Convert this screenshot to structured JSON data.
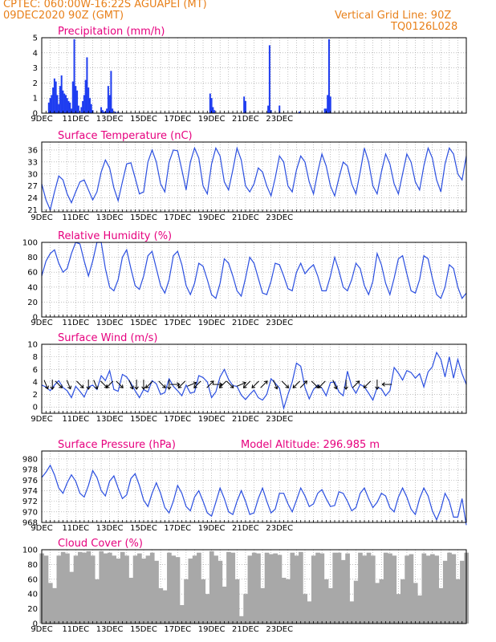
{
  "header": {
    "line1_left": "CPTEC:   060:00W-16:22S   AGUAPEI (MT)",
    "line2_left": "09DEC2020 90Z (GMT)",
    "line2_right": "Vertical Grid Line: 90Z",
    "line3_right": "TQ0126L028"
  },
  "colors": {
    "header": "#e8801a",
    "title": "#e6007e",
    "series": "#2b4fe0",
    "bars": "#1f3df0",
    "cloud": "#a8a8a8",
    "wind": "#000000"
  },
  "chart_data": [
    {
      "type": "bar",
      "title": "Precipitation (mm/h)",
      "x_ticks": [
        "9DEC",
        "11DEC",
        "13DEC",
        "15DEC",
        "17DEC",
        "19DEC",
        "21DEC",
        "23DEC"
      ],
      "y_ticks": [
        "0",
        "1",
        "2",
        "3",
        "4",
        "5"
      ],
      "ylim": [
        0,
        5
      ],
      "grid": true,
      "x_unit": "hours since 09DEC 00Z",
      "x": [
        10,
        12,
        14,
        16,
        18,
        20,
        22,
        24,
        26,
        28,
        30,
        32,
        34,
        36,
        38,
        40,
        42,
        44,
        46,
        48,
        50,
        52,
        56,
        58,
        60,
        62,
        64,
        66,
        68,
        70,
        72,
        84,
        86,
        88,
        90,
        92,
        94,
        96,
        98,
        100,
        104,
        108,
        238,
        240,
        242,
        244,
        286,
        288,
        320,
        322,
        324,
        336,
        364,
        400,
        402,
        404,
        406,
        408
      ],
      "values": [
        0.7,
        1.0,
        1.2,
        1.7,
        2.3,
        2.1,
        1.2,
        0.6,
        1.8,
        2.5,
        1.5,
        1.3,
        1.2,
        1.0,
        0.8,
        0.7,
        0.3,
        2.1,
        4.9,
        1.8,
        1.5,
        0.5,
        0.4,
        0.8,
        1.2,
        2.2,
        3.7,
        1.7,
        1.0,
        0.6,
        0.2,
        0.4,
        0.2,
        0.1,
        0.1,
        0.3,
        1.8,
        1.2,
        2.8,
        0.3,
        0.1,
        0.1,
        1.3,
        1.0,
        0.4,
        0.2,
        1.1,
        0.8,
        0.5,
        4.5,
        0.2,
        0.5,
        0.1,
        0.3,
        0.3,
        1.2,
        4.9,
        1.1
      ]
    },
    {
      "type": "line",
      "title": "Surface Temperature (nC)",
      "x_ticks": [
        "9DEC",
        "11DEC",
        "13DEC",
        "15DEC",
        "17DEC",
        "19DEC",
        "21DEC",
        "23DEC"
      ],
      "y_ticks": [
        "21",
        "24",
        "27",
        "30",
        "33",
        "36"
      ],
      "ylim": [
        20.5,
        38
      ],
      "grid": true,
      "x_unit": "hours since 09DEC 00Z",
      "x": [
        0,
        6,
        12,
        18,
        24,
        30,
        36,
        42,
        48,
        54,
        60,
        66,
        72,
        78,
        84,
        90,
        96,
        102,
        108,
        114,
        120,
        126,
        132,
        138,
        144,
        150,
        156,
        162,
        168,
        174,
        180,
        186,
        192,
        198,
        204,
        210,
        216,
        222,
        228,
        234,
        240,
        246,
        252,
        258,
        264,
        270,
        276,
        282,
        288,
        294,
        300,
        306,
        312,
        318,
        324,
        330,
        336,
        342,
        348,
        354,
        360,
        366,
        372,
        378,
        384,
        390,
        396,
        402,
        408,
        414,
        420,
        426,
        432,
        438,
        444,
        450,
        456,
        462,
        468,
        474,
        480,
        486,
        492,
        498,
        504,
        510,
        516,
        522,
        528,
        534,
        540,
        546,
        552,
        558,
        564,
        570,
        576,
        582,
        588,
        594,
        600
      ],
      "values": [
        27.5,
        23.5,
        21,
        25.5,
        29.5,
        28.5,
        25,
        22.8,
        25.5,
        28,
        28.5,
        26,
        23.5,
        25.5,
        30.5,
        33.5,
        31.5,
        26.5,
        23.3,
        28,
        32.5,
        32.8,
        29,
        25,
        25.5,
        33,
        36,
        33,
        27.5,
        25.5,
        33,
        36,
        35.8,
        31,
        26,
        33,
        36.5,
        34,
        27,
        25,
        32.5,
        36.5,
        34.5,
        28,
        26,
        31,
        36.5,
        33.5,
        27,
        25.5,
        27.5,
        31.5,
        30.5,
        27,
        24.5,
        29,
        34.5,
        33,
        27,
        25.5,
        31,
        34.5,
        33,
        28,
        25,
        30.5,
        35,
        32,
        27,
        24.5,
        29,
        33,
        32,
        27.5,
        25,
        30.5,
        36.5,
        33,
        27,
        25,
        30.5,
        35,
        32.5,
        27.5,
        25,
        30,
        35,
        33,
        28,
        26,
        32,
        36.5,
        34,
        28.5,
        25.5,
        32.5,
        36.5,
        35,
        30,
        28.5,
        34.5
      ]
    },
    {
      "type": "line",
      "title": "Relative Humidity (%)",
      "x_ticks": [
        "9DEC",
        "11DEC",
        "13DEC",
        "15DEC",
        "17DEC",
        "19DEC",
        "21DEC",
        "23DEC"
      ],
      "y_ticks": [
        "0",
        "20",
        "40",
        "60",
        "80",
        "100"
      ],
      "ylim": [
        0,
        100
      ],
      "grid": true,
      "x_unit": "hours since 09DEC 00Z",
      "x": [
        0,
        6,
        12,
        18,
        24,
        30,
        36,
        42,
        48,
        54,
        60,
        66,
        72,
        78,
        84,
        90,
        96,
        102,
        108,
        114,
        120,
        126,
        132,
        138,
        144,
        150,
        156,
        162,
        168,
        174,
        180,
        186,
        192,
        198,
        204,
        210,
        216,
        222,
        228,
        234,
        240,
        246,
        252,
        258,
        264,
        270,
        276,
        282,
        288,
        294,
        300,
        306,
        312,
        318,
        324,
        330,
        336,
        342,
        348,
        354,
        360,
        366,
        372,
        378,
        384,
        390,
        396,
        402,
        408,
        414,
        420,
        426,
        432,
        438,
        444,
        450,
        456,
        462,
        468,
        474,
        480,
        486,
        492,
        498,
        504,
        510,
        516,
        522,
        528,
        534,
        540,
        546,
        552,
        558,
        564,
        570,
        576,
        582,
        588,
        594,
        600
      ],
      "values": [
        55,
        75,
        85,
        90,
        72,
        60,
        65,
        85,
        100,
        98,
        75,
        55,
        75,
        100,
        100,
        65,
        40,
        35,
        50,
        80,
        90,
        65,
        42,
        37,
        55,
        82,
        88,
        65,
        42,
        32,
        50,
        82,
        88,
        70,
        42,
        30,
        45,
        72,
        68,
        50,
        30,
        25,
        45,
        78,
        72,
        55,
        35,
        28,
        52,
        80,
        72,
        52,
        32,
        30,
        48,
        72,
        70,
        55,
        38,
        35,
        60,
        72,
        58,
        65,
        70,
        55,
        35,
        35,
        55,
        80,
        62,
        40,
        35,
        50,
        72,
        65,
        42,
        30,
        48,
        85,
        70,
        45,
        30,
        52,
        78,
        82,
        58,
        35,
        32,
        50,
        82,
        78,
        52,
        30,
        25,
        40,
        70,
        65,
        40,
        25,
        32
      ]
    },
    {
      "type": "line",
      "title": "Surface Wind (m/s)",
      "x_ticks": [
        "9DEC",
        "11DEC",
        "13DEC",
        "15DEC",
        "17DEC",
        "19DEC",
        "21DEC",
        "23DEC"
      ],
      "y_ticks": [
        "0",
        "2",
        "4",
        "6",
        "8",
        "10"
      ],
      "ylim": [
        -1,
        10
      ],
      "grid": true,
      "x_unit": "hours since 09DEC 00Z",
      "x": [
        0,
        6,
        12,
        18,
        24,
        30,
        36,
        42,
        48,
        54,
        60,
        66,
        72,
        78,
        84,
        90,
        96,
        102,
        108,
        114,
        120,
        126,
        132,
        138,
        144,
        150,
        156,
        162,
        168,
        174,
        180,
        186,
        192,
        198,
        204,
        210,
        216,
        222,
        228,
        234,
        240,
        246,
        252,
        258,
        264,
        270,
        276,
        282,
        288,
        294,
        300,
        306,
        312,
        318,
        324,
        330,
        336,
        342,
        348,
        354,
        360,
        366,
        372,
        378,
        384,
        390,
        396,
        402,
        408,
        414,
        420,
        426,
        432,
        438,
        444,
        450,
        456,
        462,
        468,
        474,
        480,
        486,
        492,
        498,
        504,
        510,
        516,
        522,
        528,
        534,
        540,
        546,
        552,
        558,
        564,
        570,
        576,
        582,
        588,
        594,
        600
      ],
      "values": [
        3.5,
        3.2,
        2.6,
        3.5,
        4.2,
        3.1,
        2.6,
        1.5,
        3.3,
        2.5,
        1.6,
        3.2,
        3.5,
        2.8,
        5,
        4.2,
        5.8,
        2.8,
        2.5,
        5.2,
        4.8,
        3.8,
        2.6,
        1.5,
        2.8,
        2.4,
        4.2,
        3.7,
        2,
        2.3,
        4.5,
        3.3,
        2.6,
        1.8,
        3.5,
        2.2,
        2.4,
        5,
        4.7,
        4,
        1.5,
        2.4,
        4.8,
        6,
        4.4,
        3.4,
        3.3,
        1.9,
        1.2,
        2,
        2.7,
        1.5,
        1.1,
        2,
        4.5,
        3.8,
        3,
        -0.2,
        2,
        4,
        7,
        6.5,
        3.1,
        1.3,
        2.8,
        3.5,
        3,
        1.8,
        3.9,
        4,
        2.4,
        1.8,
        5.7,
        3.3,
        2.2,
        3.6,
        3.2,
        2.2,
        1.1,
        3.1,
        2.9,
        1.8,
        2.6,
        6.3,
        5.4,
        4.3,
        5.8,
        5.5,
        4.6,
        5.3,
        3.2,
        5.6,
        6.4,
        8.7,
        7.6,
        4.8,
        8,
        4.6,
        7.6,
        5.3,
        3.6
      ],
      "arrow_x": [
        6,
        15,
        24,
        38,
        54,
        66,
        76,
        88,
        96,
        110,
        126,
        134,
        144,
        152,
        170,
        180,
        188,
        198,
        212,
        220,
        238,
        248,
        256,
        266,
        282,
        290,
        302,
        314,
        330,
        344,
        360,
        370,
        386,
        396,
        414,
        430,
        444,
        460,
        474,
        488
      ],
      "arrow_dir": [
        "sse",
        "s",
        "se",
        "sse",
        "se",
        "s",
        "sse",
        "se",
        "sw",
        "se",
        "sse",
        "s",
        "s",
        "sw",
        "se",
        "s",
        "e",
        "sw",
        "ene",
        "sw",
        "ne",
        "e",
        "sw",
        "se",
        "ene",
        "sw",
        "sw",
        "ne",
        "sse",
        "se",
        "sw",
        "ne",
        "se",
        "sw",
        "sse",
        "s",
        "ne",
        "sw",
        "s",
        "w"
      ]
    },
    {
      "type": "line",
      "title": "Surface Pressure (hPa)",
      "annotation": "Model Altitude: 296.985 m",
      "x_ticks": [
        "9DEC",
        "11DEC",
        "13DEC",
        "15DEC",
        "17DEC",
        "19DEC",
        "21DEC",
        "23DEC"
      ],
      "y_ticks": [
        "968",
        "970",
        "972",
        "974",
        "976",
        "978",
        "980"
      ],
      "ylim": [
        968,
        981.5
      ],
      "grid": true,
      "x_unit": "hours since 09DEC 00Z",
      "x": [
        0,
        6,
        12,
        18,
        24,
        30,
        36,
        42,
        48,
        54,
        60,
        66,
        72,
        78,
        84,
        90,
        96,
        102,
        108,
        114,
        120,
        126,
        132,
        138,
        144,
        150,
        156,
        162,
        168,
        174,
        180,
        186,
        192,
        198,
        204,
        210,
        216,
        222,
        228,
        234,
        240,
        246,
        252,
        258,
        264,
        270,
        276,
        282,
        288,
        294,
        300,
        306,
        312,
        318,
        324,
        330,
        336,
        342,
        348,
        354,
        360,
        366,
        372,
        378,
        384,
        390,
        396,
        402,
        408,
        414,
        420,
        426,
        432,
        438,
        444,
        450,
        456,
        462,
        468,
        474,
        480,
        486,
        492,
        498,
        504,
        510,
        516,
        522,
        528,
        534,
        540,
        546,
        552,
        558,
        564,
        570,
        576,
        582,
        588,
        594,
        600
      ],
      "values": [
        976.5,
        977.5,
        978.8,
        977,
        974.5,
        973.5,
        975.5,
        977,
        975.8,
        973.5,
        972.8,
        975,
        977.8,
        976.5,
        974,
        973,
        975.8,
        976.8,
        974.5,
        972.5,
        973.2,
        976.3,
        977.2,
        975,
        972.2,
        971,
        973.5,
        975.5,
        973.5,
        970.8,
        969.8,
        972,
        975,
        973.5,
        971,
        970.2,
        972.8,
        974,
        972,
        969.8,
        969.2,
        971.8,
        974.5,
        972.5,
        970,
        969.5,
        972,
        974,
        972,
        969.5,
        969.8,
        972.5,
        974.5,
        972,
        969.8,
        970.5,
        973.5,
        973.5,
        971.5,
        970,
        972.2,
        974.5,
        973,
        971,
        971.5,
        973.5,
        974.2,
        972.5,
        971,
        971.2,
        973.8,
        973.5,
        972,
        970.2,
        970.8,
        973.5,
        974.5,
        972.5,
        970.8,
        971.8,
        973.5,
        973,
        970.8,
        970,
        972.8,
        974.5,
        972.8,
        970.5,
        969.5,
        972.5,
        974.5,
        973,
        970.2,
        968.5,
        970.5,
        973.5,
        972,
        969,
        969,
        972.5,
        967.5
      ]
    },
    {
      "type": "bar",
      "title": "Cloud Cover (%)",
      "x_ticks": [
        "9DEC",
        "11DEC",
        "13DEC",
        "15DEC",
        "17DEC",
        "19DEC",
        "21DEC",
        "23DEC"
      ],
      "y_ticks": [
        "0",
        "20",
        "40",
        "60",
        "80",
        "100"
      ],
      "ylim": [
        0,
        100
      ],
      "grid": true,
      "x_unit": "hours since 09DEC 00Z",
      "x": [
        0,
        6,
        12,
        18,
        24,
        30,
        36,
        42,
        48,
        54,
        60,
        66,
        72,
        78,
        84,
        90,
        96,
        102,
        108,
        114,
        120,
        126,
        132,
        138,
        144,
        150,
        156,
        162,
        168,
        174,
        180,
        186,
        192,
        198,
        204,
        210,
        216,
        222,
        228,
        234,
        240,
        246,
        252,
        258,
        264,
        270,
        276,
        282,
        288,
        294,
        300,
        306,
        312,
        318,
        324,
        330,
        336,
        342,
        348,
        354,
        360,
        366,
        372,
        378,
        384,
        390,
        396,
        402,
        408,
        414,
        420,
        426,
        432,
        438,
        444,
        450,
        456,
        462,
        468,
        474,
        480,
        486,
        492,
        498,
        504,
        510,
        516,
        522,
        528,
        534,
        540,
        546,
        552,
        558,
        564,
        570,
        576,
        582,
        588,
        594,
        600
      ],
      "values": [
        95,
        92,
        55,
        48,
        92,
        97,
        95,
        70,
        92,
        97,
        96,
        98,
        92,
        60,
        98,
        95,
        96,
        92,
        88,
        97,
        92,
        62,
        92,
        95,
        88,
        92,
        96,
        85,
        48,
        45,
        96,
        92,
        90,
        25,
        60,
        88,
        92,
        96,
        60,
        40,
        98,
        92,
        85,
        50,
        97,
        96,
        60,
        10,
        40,
        92,
        96,
        95,
        48,
        96,
        94,
        95,
        93,
        62,
        60,
        96,
        92,
        97,
        40,
        30,
        92,
        96,
        95,
        60,
        48,
        96,
        96,
        86,
        95,
        30,
        58,
        96,
        92,
        96,
        92,
        55,
        60,
        96,
        95,
        92,
        40,
        60,
        92,
        94,
        55,
        38,
        95,
        92,
        94,
        92,
        48,
        85,
        96,
        94,
        60,
        85,
        96
      ]
    }
  ]
}
